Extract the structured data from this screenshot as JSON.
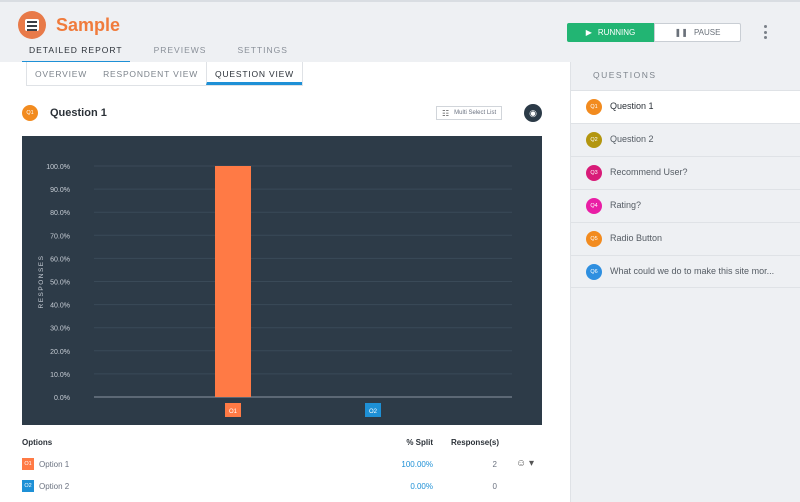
{
  "app": {
    "title": "Sample",
    "icon": "survey-icon"
  },
  "main_tabs": [
    {
      "label": "DETAILED REPORT",
      "active": true
    },
    {
      "label": "PREVIEWS",
      "active": false
    },
    {
      "label": "SETTINGS",
      "active": false
    }
  ],
  "controls": {
    "running_label": "RUNNING",
    "pause_label": "PAUSE"
  },
  "sub_tabs": [
    {
      "label": "OVERVIEW",
      "active": false
    },
    {
      "label": "RESPONDENT VIEW",
      "active": false
    },
    {
      "label": "QUESTION VIEW",
      "active": true
    }
  ],
  "question": {
    "badge": "Q1",
    "badge_color": "#f28b1f",
    "title": "Question 1",
    "type_label": "Multi Select List"
  },
  "chart_data": {
    "type": "bar",
    "categories": [
      "O1",
      "O2"
    ],
    "category_colors": [
      "#ff7a45",
      "#1e90d6"
    ],
    "values": [
      100.0,
      0.0
    ],
    "ylabel": "RESPONSES",
    "ylim": [
      0,
      100
    ],
    "yticks": [
      "0.0%",
      "10.0%",
      "20.0%",
      "30.0%",
      "40.0%",
      "50.0%",
      "60.0%",
      "70.0%",
      "80.0%",
      "90.0%",
      "100.0%"
    ],
    "grid": true,
    "background": "#2d3b48"
  },
  "options_table": {
    "headers": {
      "options": "Options",
      "split": "% Split",
      "responses": "Response(s)"
    },
    "rows": [
      {
        "tag": "O1",
        "color": "#ff7a45",
        "name": "Option 1",
        "split": "100.00%",
        "responses": "2"
      },
      {
        "tag": "O2",
        "color": "#1e90d6",
        "name": "Option 2",
        "split": "0.00%",
        "responses": "0"
      }
    ]
  },
  "sidebar": {
    "title": "QUESTIONS",
    "items": [
      {
        "badge": "Q1",
        "color": "#f28b1f",
        "label": "Question 1",
        "active": true
      },
      {
        "badge": "Q2",
        "color": "#b3960f",
        "label": "Question 2",
        "active": false
      },
      {
        "badge": "Q3",
        "color": "#d81b78",
        "label": "Recommend User?",
        "active": false
      },
      {
        "badge": "Q4",
        "color": "#e91ea5",
        "label": "Rating?",
        "active": false
      },
      {
        "badge": "Q5",
        "color": "#f28b1f",
        "label": "Radio Button",
        "active": false
      },
      {
        "badge": "Q6",
        "color": "#2e8fe0",
        "label": "What could we do to make this site mor...",
        "active": false
      }
    ]
  }
}
